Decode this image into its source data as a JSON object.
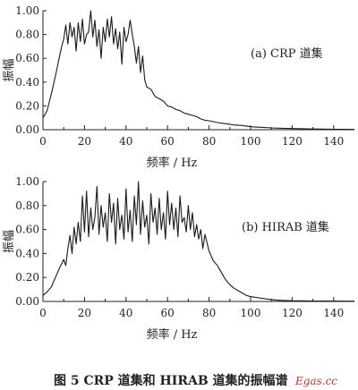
{
  "figure": {
    "caption": "图 5 CRP 道集和 HIRAB 道集的振幅谱",
    "watermark": "Egas.cc"
  },
  "chart_data": [
    {
      "type": "line",
      "annotation": "(a) CRP 道集",
      "xlabel": "频率 / Hz",
      "ylabel": "振幅",
      "xlim": [
        0,
        150
      ],
      "ylim": [
        0,
        1.0
      ],
      "xticks": [
        "0",
        "20",
        "40",
        "60",
        "80",
        "100",
        "120",
        "140"
      ],
      "yticks": [
        "0.00",
        "0.20",
        "0.40",
        "0.60",
        "0.80",
        "1.00"
      ],
      "grid": false,
      "series": [
        {
          "x": [
            0,
            2,
            4,
            6,
            8,
            9,
            10,
            11,
            12,
            13,
            14,
            15,
            16,
            17,
            18,
            19,
            20,
            21,
            22,
            23,
            24,
            25,
            26,
            27,
            28,
            29,
            30,
            31,
            32,
            33,
            34,
            35,
            36,
            37,
            38,
            39,
            40,
            41,
            42,
            43,
            44,
            45,
            46,
            47,
            48,
            49,
            50,
            52,
            54,
            56,
            58,
            60,
            62,
            64,
            66,
            68,
            70,
            72,
            74,
            76,
            78,
            80,
            84,
            88,
            92,
            96,
            100,
            105,
            110,
            115,
            120,
            125,
            130,
            135,
            140,
            145,
            150
          ],
          "y": [
            0.1,
            0.16,
            0.3,
            0.45,
            0.62,
            0.7,
            0.76,
            0.88,
            0.72,
            0.9,
            0.78,
            0.86,
            0.66,
            0.9,
            0.74,
            0.93,
            0.72,
            0.8,
            0.82,
            1.0,
            0.78,
            0.92,
            0.7,
            0.84,
            0.6,
            0.86,
            0.74,
            0.93,
            0.78,
            0.95,
            0.72,
            0.85,
            0.68,
            0.82,
            0.55,
            0.86,
            0.74,
            0.8,
            0.92,
            0.8,
            0.7,
            0.56,
            0.7,
            0.48,
            0.62,
            0.42,
            0.36,
            0.34,
            0.28,
            0.26,
            0.24,
            0.2,
            0.19,
            0.17,
            0.16,
            0.14,
            0.13,
            0.12,
            0.11,
            0.09,
            0.08,
            0.075,
            0.06,
            0.05,
            0.04,
            0.035,
            0.025,
            0.02,
            0.015,
            0.012,
            0.01,
            0.008,
            0.006,
            0.005,
            0.004,
            0.003,
            0.002
          ]
        }
      ]
    },
    {
      "type": "line",
      "annotation": "(b) HIRAB 道集",
      "xlabel": "频率 / Hz",
      "ylabel": "振幅",
      "xlim": [
        0,
        150
      ],
      "ylim": [
        0,
        1.0
      ],
      "xticks": [
        "0",
        "20",
        "40",
        "60",
        "80",
        "100",
        "120",
        "140"
      ],
      "yticks": [
        "0.00",
        "0.20",
        "0.40",
        "0.60",
        "0.80",
        "1.00"
      ],
      "grid": false,
      "series": [
        {
          "x": [
            0,
            2,
            4,
            6,
            8,
            10,
            11,
            12,
            13,
            14,
            15,
            16,
            17,
            18,
            19,
            20,
            21,
            22,
            23,
            24,
            25,
            26,
            27,
            28,
            29,
            30,
            31,
            32,
            33,
            34,
            35,
            36,
            37,
            38,
            39,
            40,
            41,
            42,
            43,
            44,
            45,
            46,
            47,
            48,
            49,
            50,
            51,
            52,
            53,
            54,
            55,
            56,
            57,
            58,
            59,
            60,
            61,
            62,
            63,
            64,
            65,
            66,
            67,
            68,
            69,
            70,
            71,
            72,
            73,
            74,
            75,
            76,
            77,
            78,
            80,
            82,
            84,
            86,
            88,
            90,
            92,
            94,
            96,
            98,
            100,
            104,
            108,
            112,
            116,
            120,
            125,
            130,
            135,
            140,
            145,
            150
          ],
          "y": [
            0.05,
            0.08,
            0.12,
            0.2,
            0.28,
            0.35,
            0.3,
            0.44,
            0.55,
            0.4,
            0.62,
            0.48,
            0.66,
            0.5,
            0.88,
            0.58,
            0.92,
            0.54,
            0.78,
            0.6,
            0.7,
            0.96,
            0.56,
            0.8,
            0.62,
            0.74,
            0.5,
            0.9,
            0.66,
            0.82,
            0.48,
            0.86,
            0.6,
            0.72,
            0.52,
            0.94,
            0.58,
            0.76,
            0.5,
            0.88,
            0.64,
            1.0,
            0.56,
            0.84,
            0.62,
            0.72,
            0.48,
            0.9,
            0.66,
            0.78,
            0.56,
            0.86,
            0.6,
            0.74,
            0.52,
            0.92,
            0.64,
            0.82,
            0.6,
            0.78,
            0.54,
            0.88,
            0.66,
            0.7,
            0.58,
            0.8,
            0.6,
            0.74,
            0.54,
            0.64,
            0.52,
            0.6,
            0.44,
            0.56,
            0.42,
            0.34,
            0.3,
            0.24,
            0.18,
            0.14,
            0.11,
            0.09,
            0.07,
            0.05,
            0.04,
            0.03,
            0.02,
            0.012,
            0.008,
            0.006,
            0.005,
            0.004,
            0.003,
            0.003,
            0.002,
            0.002
          ]
        }
      ]
    }
  ]
}
